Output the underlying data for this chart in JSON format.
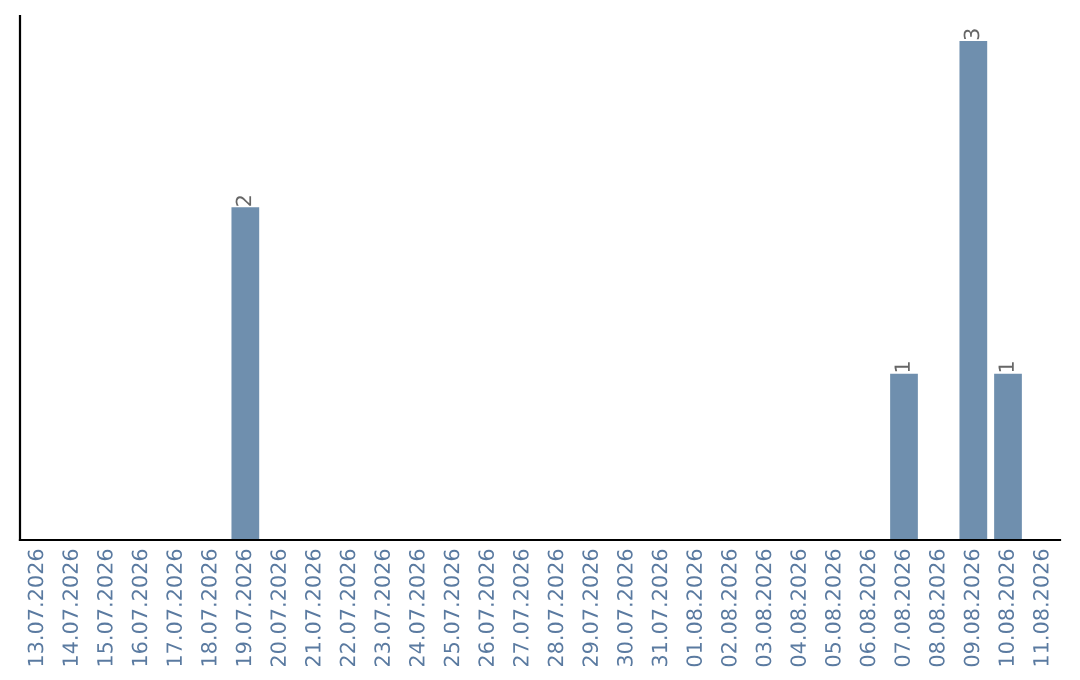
{
  "chart_data": {
    "type": "bar",
    "categories": [
      "13.07.2026",
      "14.07.2026",
      "15.07.2026",
      "16.07.2026",
      "17.07.2026",
      "18.07.2026",
      "19.07.2026",
      "20.07.2026",
      "21.07.2026",
      "22.07.2026",
      "23.07.2026",
      "24.07.2026",
      "25.07.2026",
      "26.07.2026",
      "27.07.2026",
      "28.07.2026",
      "29.07.2026",
      "30.07.2026",
      "31.07.2026",
      "01.08.2026",
      "02.08.2026",
      "03.08.2026",
      "04.08.2026",
      "05.08.2026",
      "06.08.2026",
      "07.08.2026",
      "08.08.2026",
      "09.08.2026",
      "10.08.2026",
      "11.08.2026"
    ],
    "values": [
      0,
      0,
      0,
      0,
      0,
      0,
      2,
      0,
      0,
      0,
      0,
      0,
      0,
      0,
      0,
      0,
      0,
      0,
      0,
      0,
      0,
      0,
      0,
      0,
      0,
      1,
      0,
      3,
      1,
      0
    ],
    "value_labels": [
      null,
      null,
      null,
      null,
      null,
      null,
      "2",
      null,
      null,
      null,
      null,
      null,
      null,
      null,
      null,
      null,
      null,
      null,
      null,
      null,
      null,
      null,
      null,
      null,
      null,
      "1",
      null,
      "3",
      "1",
      null
    ],
    "color": "#6f8fae",
    "grid": false,
    "legend": false,
    "tick_labels": "x"
  }
}
